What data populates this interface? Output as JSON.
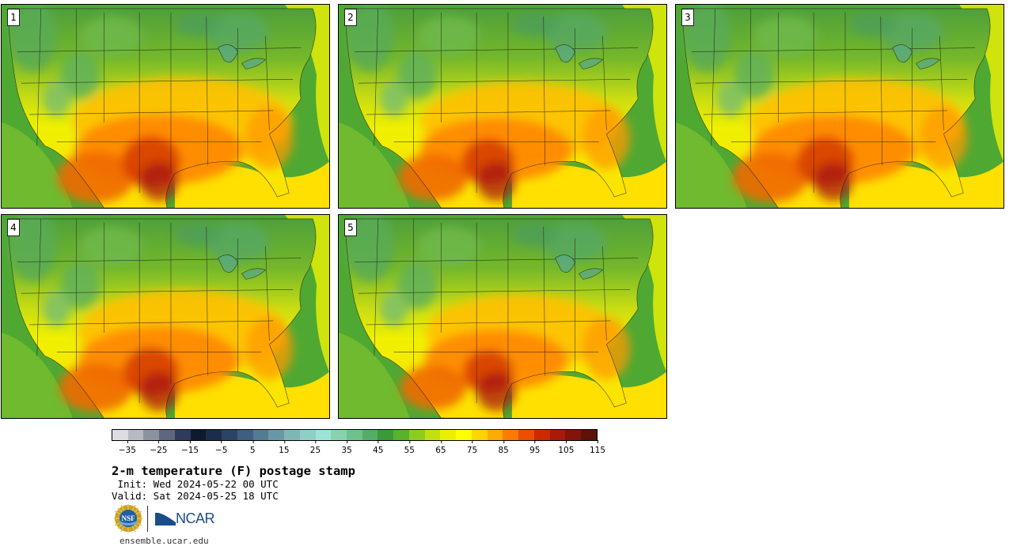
{
  "panels": [
    {
      "number": "1",
      "heat_level": 0.82
    },
    {
      "number": "2",
      "heat_level": 0.74
    },
    {
      "number": "3",
      "heat_level": 0.8
    },
    {
      "number": "4",
      "heat_level": 0.78
    },
    {
      "number": "5",
      "heat_level": 0.7
    }
  ],
  "colorbar": {
    "colors": [
      "#dcdde2",
      "#b7b9c3",
      "#8d92a0",
      "#5f6680",
      "#2e3b5c",
      "#0e1a30",
      "#1b2d4b",
      "#2b4465",
      "#3e5f7f",
      "#517c93",
      "#6898a6",
      "#7eb7b6",
      "#8fcfc5",
      "#9ee3d5",
      "#88d3ae",
      "#6ec18b",
      "#55ac66",
      "#3a9a3a",
      "#57b22c",
      "#8ccc1e",
      "#c2e010",
      "#ecf000",
      "#ffff00",
      "#ffd400",
      "#ffab00",
      "#ff7a00",
      "#ee4e00",
      "#cc2a00",
      "#a81a0a",
      "#84140a",
      "#5e1208"
    ],
    "ticks": [
      "−35",
      "−25",
      "−15",
      "−5",
      "5",
      "15",
      "25",
      "35",
      "45",
      "55",
      "65",
      "75",
      "85",
      "95",
      "105",
      "115"
    ],
    "min": -40,
    "max": 115
  },
  "title": "2-m temperature (F) postage stamp",
  "init": " Init: Wed 2024-05-22 00 UTC",
  "valid": "Valid: Sat 2024-05-25 18 UTC",
  "logos": {
    "nsf": "NSF",
    "ncar": "NCAR"
  },
  "url": "ensemble.ucar.edu"
}
